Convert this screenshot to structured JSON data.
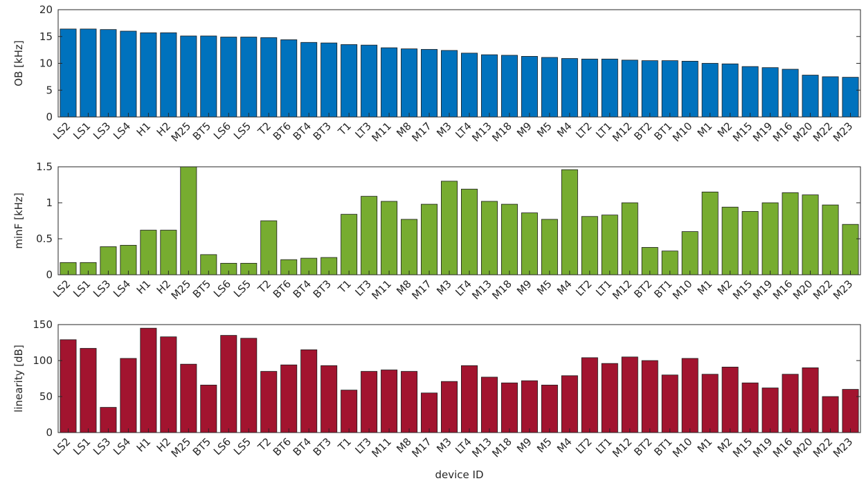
{
  "chart_data": [
    {
      "type": "bar",
      "categories": [
        "LS2",
        "LS1",
        "LS3",
        "LS4",
        "H1",
        "H2",
        "M25",
        "BT5",
        "LS6",
        "LS5",
        "T2",
        "BT6",
        "BT4",
        "BT3",
        "T1",
        "LT3",
        "M11",
        "M8",
        "M17",
        "M3",
        "LT4",
        "M13",
        "M18",
        "M9",
        "M5",
        "M4",
        "LT2",
        "LT1",
        "M12",
        "BT2",
        "BT1",
        "M10",
        "M1",
        "M2",
        "M15",
        "M19",
        "M16",
        "M20",
        "M22",
        "M23"
      ],
      "values": [
        16.4,
        16.4,
        16.3,
        16.0,
        15.7,
        15.7,
        15.1,
        15.1,
        14.9,
        14.9,
        14.8,
        14.4,
        13.9,
        13.8,
        13.5,
        13.4,
        12.9,
        12.7,
        12.6,
        12.4,
        11.9,
        11.6,
        11.5,
        11.3,
        11.1,
        10.9,
        10.8,
        10.8,
        10.6,
        10.5,
        10.5,
        10.4,
        10.0,
        9.9,
        9.4,
        9.2,
        8.9,
        7.8,
        7.5,
        7.4
      ],
      "xlabel": "",
      "ylabel": "OB [kHz]",
      "ylim": [
        0,
        20
      ],
      "yticks": [
        0,
        5,
        10,
        15,
        20
      ],
      "color": "#0072bd"
    },
    {
      "type": "bar",
      "categories": [
        "LS2",
        "LS1",
        "LS3",
        "LS4",
        "H1",
        "H2",
        "M25",
        "BT5",
        "LS6",
        "LS5",
        "T2",
        "BT6",
        "BT4",
        "BT3",
        "T1",
        "LT3",
        "M11",
        "M8",
        "M17",
        "M3",
        "LT4",
        "M13",
        "M18",
        "M9",
        "M5",
        "M4",
        "LT2",
        "LT1",
        "M12",
        "BT2",
        "BT1",
        "M10",
        "M1",
        "M2",
        "M15",
        "M19",
        "M16",
        "M20",
        "M22",
        "M23"
      ],
      "values": [
        0.17,
        0.17,
        0.39,
        0.41,
        0.62,
        0.62,
        1.6,
        0.28,
        0.16,
        0.16,
        0.75,
        0.21,
        0.23,
        0.24,
        0.84,
        1.09,
        1.02,
        0.77,
        0.98,
        1.3,
        1.19,
        1.02,
        0.98,
        0.86,
        0.77,
        1.46,
        0.81,
        0.83,
        1.0,
        0.38,
        0.33,
        0.6,
        1.15,
        0.94,
        0.88,
        1.0,
        1.14,
        1.11,
        0.97,
        0.7
      ],
      "xlabel": "",
      "ylabel": "minF [kHz]",
      "ylim": [
        0,
        1.5
      ],
      "yticks": [
        0,
        0.5,
        1,
        1.5
      ],
      "color": "#77ac30"
    },
    {
      "type": "bar",
      "categories": [
        "LS2",
        "LS1",
        "LS3",
        "LS4",
        "H1",
        "H2",
        "M25",
        "BT5",
        "LS6",
        "LS5",
        "T2",
        "BT6",
        "BT4",
        "BT3",
        "T1",
        "LT3",
        "M11",
        "M8",
        "M17",
        "M3",
        "LT4",
        "M13",
        "M18",
        "M9",
        "M5",
        "M4",
        "LT2",
        "LT1",
        "M12",
        "BT2",
        "BT1",
        "M10",
        "M1",
        "M2",
        "M15",
        "M19",
        "M16",
        "M20",
        "M22",
        "M23"
      ],
      "values": [
        129,
        117,
        35,
        103,
        145,
        133,
        95,
        66,
        135,
        131,
        85,
        94,
        115,
        93,
        59,
        85,
        87,
        85,
        55,
        71,
        93,
        77,
        69,
        72,
        66,
        79,
        104,
        96,
        105,
        100,
        80,
        103,
        81,
        91,
        69,
        62,
        81,
        90,
        50,
        60
      ],
      "xlabel": "device ID",
      "ylabel": "linearity [dB]",
      "ylim": [
        0,
        150
      ],
      "yticks": [
        0,
        50,
        100,
        150
      ],
      "color": "#a2142f"
    }
  ]
}
